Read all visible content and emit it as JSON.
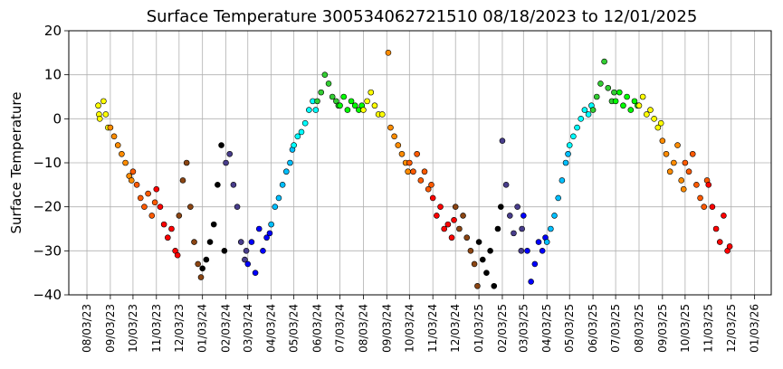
{
  "chart_data": {
    "type": "scatter",
    "title": "Surface Temperature 300534062721510  08/18/2023 to 12/01/2025",
    "xlabel": "",
    "ylabel": "Surface Temperature",
    "ylim": [
      -40,
      20
    ],
    "yticks": [
      -40,
      -30,
      -20,
      -10,
      0,
      10,
      20
    ],
    "xlim": [
      "2023-07-10",
      "2026-01-25"
    ],
    "xticks": [
      "08/03/23",
      "09/03/23",
      "10/03/23",
      "11/03/23",
      "12/03/23",
      "01/03/24",
      "02/03/24",
      "03/03/24",
      "04/03/24",
      "05/03/24",
      "06/03/24",
      "07/03/24",
      "08/03/24",
      "09/03/24",
      "10/03/24",
      "11/03/24",
      "12/03/24",
      "01/03/25",
      "02/03/25",
      "03/03/25",
      "04/03/25",
      "05/03/25",
      "06/03/25",
      "07/03/25",
      "08/03/25",
      "09/03/25",
      "10/03/25",
      "11/03/25",
      "12/03/25",
      "01/03/26"
    ],
    "grid": true,
    "marker_edge_color": "#000000",
    "series": [
      {
        "color": "#ffff00",
        "x": [
          "2023-08-18",
          "2023-08-19",
          "2023-08-20",
          "2023-08-25",
          "2023-08-28",
          "2023-08-31"
        ],
        "y": [
          3,
          1,
          0,
          4,
          1,
          -2
        ]
      },
      {
        "color": "#ff8c00",
        "x": [
          "2023-09-03",
          "2023-09-08",
          "2023-09-13",
          "2023-09-18",
          "2023-09-23",
          "2023-09-28",
          "2023-10-01"
        ],
        "y": [
          -2,
          -4,
          -6,
          -8,
          -10,
          -13,
          -14
        ]
      },
      {
        "color": "#ff5a00",
        "x": [
          "2023-10-03",
          "2023-10-08",
          "2023-10-13",
          "2023-10-18",
          "2023-10-23",
          "2023-10-28",
          "2023-11-01"
        ],
        "y": [
          -12,
          -15,
          -18,
          -20,
          -17,
          -22,
          -19
        ]
      },
      {
        "color": "#ff0000",
        "x": [
          "2023-11-03",
          "2023-11-08",
          "2023-11-13",
          "2023-11-18",
          "2023-11-23",
          "2023-11-28",
          "2023-12-01"
        ],
        "y": [
          -16,
          -20,
          -24,
          -27,
          -25,
          -30,
          -31
        ]
      },
      {
        "color": "#8b4513",
        "x": [
          "2023-12-03",
          "2023-12-08",
          "2023-12-13",
          "2023-12-18",
          "2023-12-23",
          "2023-12-28",
          "2024-01-01"
        ],
        "y": [
          -22,
          -14,
          -10,
          -20,
          -28,
          -33,
          -36
        ]
      },
      {
        "color": "#000000",
        "x": [
          "2024-01-03",
          "2024-01-08",
          "2024-01-13",
          "2024-01-18",
          "2024-01-23",
          "2024-01-28",
          "2024-02-01"
        ],
        "y": [
          -34,
          -32,
          -28,
          -24,
          -15,
          -6,
          -30
        ]
      },
      {
        "color": "#483d8b",
        "x": [
          "2024-02-03",
          "2024-02-08",
          "2024-02-13",
          "2024-02-18",
          "2024-02-23",
          "2024-02-28",
          "2024-03-01"
        ],
        "y": [
          -10,
          -8,
          -15,
          -20,
          -28,
          -32,
          -30
        ]
      },
      {
        "color": "#0000ff",
        "x": [
          "2024-03-03",
          "2024-03-08",
          "2024-03-13",
          "2024-03-18",
          "2024-03-23",
          "2024-03-28",
          "2024-04-01"
        ],
        "y": [
          -33,
          -28,
          -35,
          -25,
          -30,
          -27,
          -26
        ]
      },
      {
        "color": "#00bfff",
        "x": [
          "2024-04-03",
          "2024-04-08",
          "2024-04-13",
          "2024-04-18",
          "2024-04-23",
          "2024-04-28",
          "2024-05-01"
        ],
        "y": [
          -24,
          -20,
          -18,
          -15,
          -12,
          -10,
          -7
        ]
      },
      {
        "color": "#00ffff",
        "x": [
          "2024-05-03",
          "2024-05-08",
          "2024-05-13",
          "2024-05-18",
          "2024-05-23",
          "2024-05-28",
          "2024-06-01"
        ],
        "y": [
          -6,
          -4,
          -3,
          -1,
          2,
          4,
          2
        ]
      },
      {
        "color": "#32cd32",
        "x": [
          "2024-06-03",
          "2024-06-08",
          "2024-06-13",
          "2024-06-18",
          "2024-06-23",
          "2024-06-28",
          "2024-07-01"
        ],
        "y": [
          4,
          6,
          10,
          8,
          5,
          4,
          3
        ]
      },
      {
        "color": "#00ff00",
        "x": [
          "2024-07-03",
          "2024-07-08",
          "2024-07-13",
          "2024-07-18",
          "2024-07-23",
          "2024-07-28",
          "2024-08-01"
        ],
        "y": [
          3,
          5,
          2,
          4,
          3,
          2,
          3
        ]
      },
      {
        "color": "#ffff00",
        "x": [
          "2024-08-03",
          "2024-08-08",
          "2024-08-13",
          "2024-08-18",
          "2024-08-23",
          "2024-08-28"
        ],
        "y": [
          2,
          4,
          6,
          3,
          1,
          1
        ]
      },
      {
        "color": "#ff8c00",
        "x": [
          "2024-09-05",
          "2024-09-08",
          "2024-09-13",
          "2024-09-18",
          "2024-09-23",
          "2024-09-28",
          "2024-10-01"
        ],
        "y": [
          15,
          -2,
          -4,
          -6,
          -8,
          -10,
          -12
        ]
      },
      {
        "color": "#ff5a00",
        "x": [
          "2024-10-03",
          "2024-10-08",
          "2024-10-13",
          "2024-10-18",
          "2024-10-23",
          "2024-10-28",
          "2024-11-01"
        ],
        "y": [
          -10,
          -12,
          -8,
          -14,
          -12,
          -16,
          -15
        ]
      },
      {
        "color": "#ff0000",
        "x": [
          "2024-11-03",
          "2024-11-08",
          "2024-11-13",
          "2024-11-18",
          "2024-11-23",
          "2024-11-28",
          "2024-12-01"
        ],
        "y": [
          -18,
          -22,
          -20,
          -25,
          -24,
          -27,
          -23
        ]
      },
      {
        "color": "#8b4513",
        "x": [
          "2024-12-03",
          "2024-12-08",
          "2024-12-13",
          "2024-12-18",
          "2024-12-23",
          "2024-12-28",
          "2025-01-01"
        ],
        "y": [
          -20,
          -25,
          -22,
          -27,
          -30,
          -33,
          -38
        ]
      },
      {
        "color": "#000000",
        "x": [
          "2025-01-03",
          "2025-01-08",
          "2025-01-13",
          "2025-01-18",
          "2025-01-23",
          "2025-01-28",
          "2025-02-01"
        ],
        "y": [
          -28,
          -32,
          -35,
          -30,
          -38,
          -25,
          -20
        ]
      },
      {
        "color": "#483d8b",
        "x": [
          "2025-02-03",
          "2025-02-08",
          "2025-02-13",
          "2025-02-18",
          "2025-02-23",
          "2025-02-28",
          "2025-03-01"
        ],
        "y": [
          -5,
          -15,
          -22,
          -26,
          -20,
          -30,
          -25
        ]
      },
      {
        "color": "#0000ff",
        "x": [
          "2025-03-03",
          "2025-03-08",
          "2025-03-13",
          "2025-03-18",
          "2025-03-23",
          "2025-03-28",
          "2025-04-01"
        ],
        "y": [
          -22,
          -30,
          -37,
          -33,
          -28,
          -30,
          -27
        ]
      },
      {
        "color": "#00bfff",
        "x": [
          "2025-04-03",
          "2025-04-08",
          "2025-04-13",
          "2025-04-18",
          "2025-04-23",
          "2025-04-28",
          "2025-05-01"
        ],
        "y": [
          -28,
          -25,
          -22,
          -18,
          -14,
          -10,
          -8
        ]
      },
      {
        "color": "#00ffff",
        "x": [
          "2025-05-03",
          "2025-05-08",
          "2025-05-13",
          "2025-05-18",
          "2025-05-23",
          "2025-05-28",
          "2025-06-01"
        ],
        "y": [
          -6,
          -4,
          -2,
          0,
          2,
          1,
          3
        ]
      },
      {
        "color": "#32cd32",
        "x": [
          "2025-06-03",
          "2025-06-08",
          "2025-06-13",
          "2025-06-18",
          "2025-06-23",
          "2025-06-28",
          "2025-07-01"
        ],
        "y": [
          2,
          5,
          8,
          13,
          7,
          4,
          6
        ]
      },
      {
        "color": "#00ff00",
        "x": [
          "2025-07-03",
          "2025-07-08",
          "2025-07-13",
          "2025-07-18",
          "2025-07-23",
          "2025-07-28",
          "2025-08-01"
        ],
        "y": [
          4,
          6,
          3,
          5,
          2,
          4,
          3
        ]
      },
      {
        "color": "#ffff00",
        "x": [
          "2025-08-03",
          "2025-08-08",
          "2025-08-13",
          "2025-08-18",
          "2025-08-23",
          "2025-08-28",
          "2025-09-01"
        ],
        "y": [
          3,
          5,
          1,
          2,
          0,
          -2,
          -1
        ]
      },
      {
        "color": "#ff8c00",
        "x": [
          "2025-09-03",
          "2025-09-08",
          "2025-09-13",
          "2025-09-18",
          "2025-09-23",
          "2025-09-28",
          "2025-10-01"
        ],
        "y": [
          -5,
          -8,
          -12,
          -10,
          -6,
          -14,
          -16
        ]
      },
      {
        "color": "#ff5a00",
        "x": [
          "2025-10-03",
          "2025-10-08",
          "2025-10-13",
          "2025-10-18",
          "2025-10-23",
          "2025-10-28",
          "2025-11-01"
        ],
        "y": [
          -10,
          -12,
          -8,
          -15,
          -18,
          -20,
          -14
        ]
      },
      {
        "color": "#ff0000",
        "x": [
          "2025-11-03",
          "2025-11-08",
          "2025-11-13",
          "2025-11-18",
          "2025-11-23",
          "2025-11-28",
          "2025-12-01"
        ],
        "y": [
          -15,
          -20,
          -25,
          -28,
          -22,
          -30,
          -29
        ]
      }
    ]
  }
}
